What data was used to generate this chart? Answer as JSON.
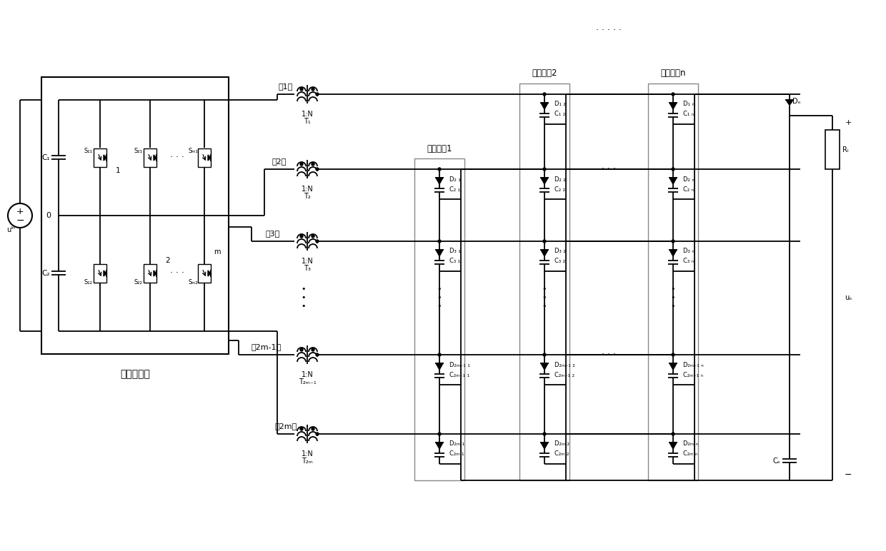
{
  "bg": "#ffffff",
  "lc": "#000000",
  "labels": {
    "inverter": "多相逆变器",
    "ph1": "第1相",
    "ph2": "第2相",
    "ph3": "第3相",
    "ph2m1": "第2m-1相",
    "ph2m": "第2m相",
    "g1": "增益单到1",
    "g2": "增益单到2",
    "gn": "增益单元n",
    "T1": "T₁",
    "T2": "T₂",
    "T3": "T₃",
    "T2m1": "T₂ₘ₋₁",
    "T2m": "T₂ₘ",
    "ratio": "1:N",
    "C1": "C₁",
    "C2": "C₂",
    "uin": "uᴵⁿ",
    "RL": "Rₗ",
    "Co": "Cₒ",
    "Do": "Dₒ",
    "uo": "uₒ"
  }
}
